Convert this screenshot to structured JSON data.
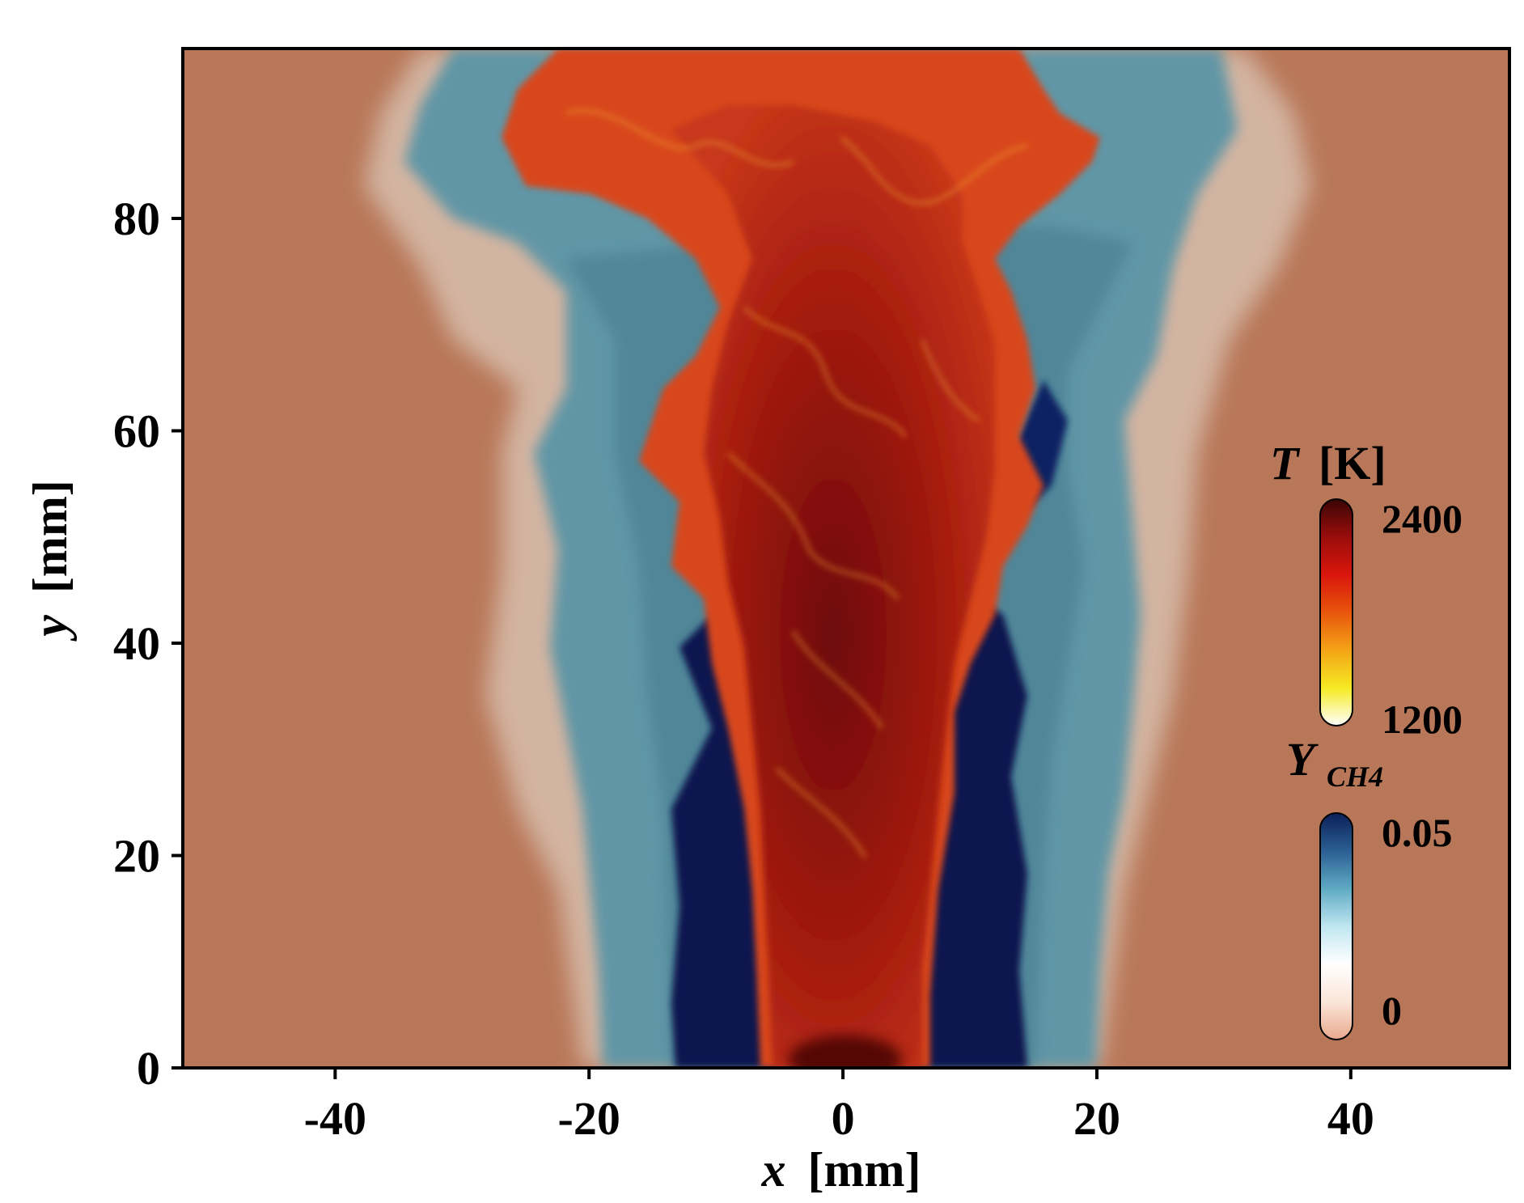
{
  "chart_data": {
    "type": "heatmap",
    "title": "",
    "xlabel": {
      "var": "x",
      "unit": "[mm]"
    },
    "ylabel": {
      "var": "y",
      "unit": "[mm]"
    },
    "xlim": [
      -52,
      52.5
    ],
    "ylim": [
      0,
      96
    ],
    "x_ticks": [
      -40,
      -20,
      0,
      20,
      40
    ],
    "y_ticks": [
      0,
      20,
      40,
      60,
      80
    ],
    "x_tick_labels": [
      "-40",
      "-20",
      "0",
      "20",
      "40"
    ],
    "y_tick_labels": [
      "0",
      "20",
      "40",
      "60",
      "80"
    ],
    "grid": false,
    "legend_placement": "right",
    "colorbars": [
      {
        "field": "T",
        "label_var": "T",
        "label_unit": "[K]",
        "min": 1200,
        "max": 2400,
        "min_label": "1200",
        "max_label": "2400",
        "colors": [
          "#ffffff",
          "#f5ea22",
          "#f4a417",
          "#e8550c",
          "#d9160c",
          "#9a0d0c",
          "#3a0505"
        ]
      },
      {
        "field": "Y_CH4",
        "label_var": "Y",
        "label_sub": "CH4",
        "min": 0,
        "max": 0.05,
        "min_label": "0",
        "max_label": "0.05",
        "colors": [
          "#e9a98e",
          "#fbe5d8",
          "#ffffff",
          "#bfe6f0",
          "#5fa9c4",
          "#2b5f93",
          "#0b1f58"
        ]
      }
    ],
    "field_description_colors": {
      "ambient": "#b87758",
      "fuel_core": "#07154a",
      "fuel_mixing": "#5d95a5",
      "mixing_edge": "#d9c0ae",
      "flame_core": "#9b1f0f",
      "flame_outer": "#d94a18"
    }
  }
}
